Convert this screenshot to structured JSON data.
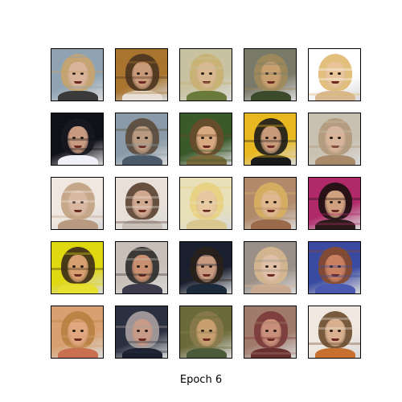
{
  "caption": "Epoch 6",
  "grid": {
    "rows": 5,
    "cols": 5,
    "tiles": [
      {
        "bg": "#8fa3b3",
        "hair": "#c9a46a",
        "skin": "#d9b49a",
        "body": "#3a3a3a"
      },
      {
        "bg": "#a8742e",
        "hair": "#4a3420",
        "skin": "#c99a7a",
        "body": "#e8e0d8"
      },
      {
        "bg": "#c8c2a0",
        "hair": "#c8b070",
        "skin": "#d8b890",
        "body": "#6a7a3a"
      },
      {
        "bg": "#7a7a6a",
        "hair": "#a08a5a",
        "skin": "#c8a070",
        "body": "#3a4a2a"
      },
      {
        "bg": "#ffffff",
        "hair": "#e0b870",
        "skin": "#e8c49a",
        "body": "#d8b890"
      },
      {
        "bg": "#101018",
        "hair": "#181820",
        "skin": "#c89a80",
        "body": "#f0f0f8"
      },
      {
        "bg": "#8a9aa8",
        "hair": "#5a4a3a",
        "skin": "#b89a80",
        "body": "#4a5a6a"
      },
      {
        "bg": "#3a5a2a",
        "hair": "#6a4a2a",
        "skin": "#d8a880",
        "body": "#7a6a3a"
      },
      {
        "bg": "#e8b820",
        "hair": "#1a1a1a",
        "skin": "#c89a7a",
        "body": "#1a1a1a"
      },
      {
        "bg": "#c8c0b0",
        "hair": "#b0987a",
        "skin": "#d8b49a",
        "body": "#a88a6a"
      },
      {
        "bg": "#f0e8e0",
        "hair": "#c0a080",
        "skin": "#d8b8a0",
        "body": "#b89a80"
      },
      {
        "bg": "#e8e0d8",
        "hair": "#5a4030",
        "skin": "#d0a890",
        "body": "#c8c0b8"
      },
      {
        "bg": "#e8e0b8",
        "hair": "#e8d080",
        "skin": "#e8c8a0",
        "body": "#d8c890"
      },
      {
        "bg": "#b08a6a",
        "hair": "#d8b060",
        "skin": "#e0b890",
        "body": "#9a6a4a"
      },
      {
        "bg": "#b02a6a",
        "hair": "#1a1010",
        "skin": "#d0a080",
        "body": "#2a1a1a"
      },
      {
        "bg": "#e0d810",
        "hair": "#3a2a1a",
        "skin": "#d8a070",
        "body": "#e8e030"
      },
      {
        "bg": "#c8c0b8",
        "hair": "#2a2a2a",
        "skin": "#c89070",
        "body": "#3a3a4a"
      },
      {
        "bg": "#1a2030",
        "hair": "#2a2018",
        "skin": "#c89a80",
        "body": "#1a2a3a"
      },
      {
        "bg": "#9a9088",
        "hair": "#d8b890",
        "skin": "#e0c0a8",
        "body": "#c8a890"
      },
      {
        "bg": "#3a4aa0",
        "hair": "#8a4a2a",
        "skin": "#c88060",
        "body": "#4a5ab0"
      },
      {
        "bg": "#d8a070",
        "hair": "#b88040",
        "skin": "#e0a880",
        "body": "#c87050"
      },
      {
        "bg": "#2a3040",
        "hair": "#a8a0a0",
        "skin": "#c89a88",
        "body": "#1a2030"
      },
      {
        "bg": "#6a6a3a",
        "hair": "#8a7a4a",
        "skin": "#c8a070",
        "body": "#4a5a3a"
      },
      {
        "bg": "#a07a6a",
        "hair": "#7a3a3a",
        "skin": "#c8907a",
        "body": "#6a3030"
      },
      {
        "bg": "#f0e8e0",
        "hair": "#6a4a2a",
        "skin": "#d8b090",
        "body": "#c87030"
      }
    ]
  }
}
